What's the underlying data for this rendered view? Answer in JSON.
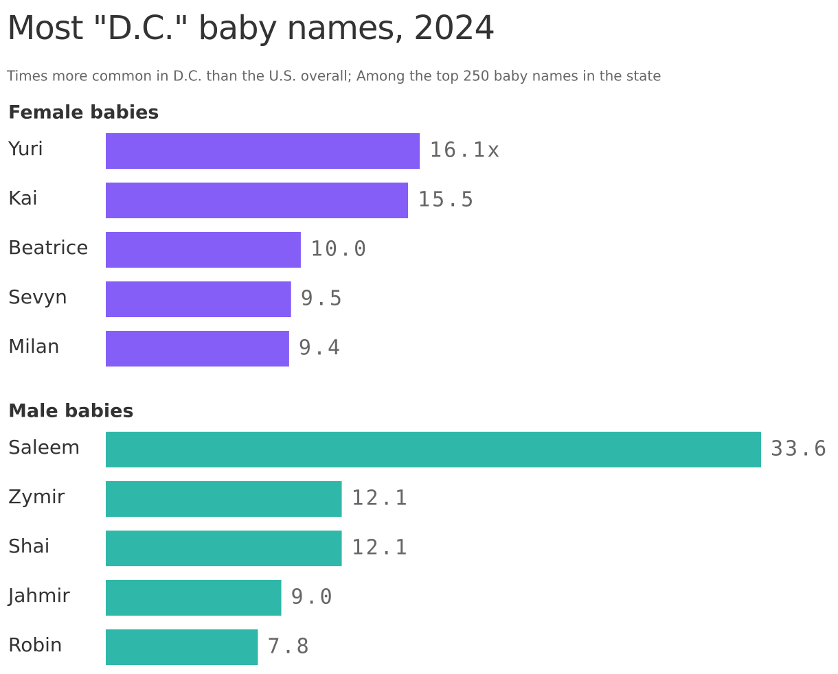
{
  "title": "Most \"D.C.\" baby names, 2024",
  "subtitle": "Times more common in D.C. than the U.S. overall; Among the top 250 baby names in the state",
  "chart_data": [
    {
      "type": "bar",
      "orientation": "horizontal",
      "title": "Female babies",
      "categories": [
        "Yuri",
        "Kai",
        "Beatrice",
        "Sevyn",
        "Milan"
      ],
      "values": [
        16.1,
        15.5,
        10.0,
        9.5,
        9.4
      ],
      "value_labels": [
        "16.1x",
        "15.5",
        "10.0",
        "9.5",
        "9.4"
      ],
      "color": "#845ef7"
    },
    {
      "type": "bar",
      "orientation": "horizontal",
      "title": "Male babies",
      "categories": [
        "Saleem",
        "Zymir",
        "Shai",
        "Jahmir",
        "Robin"
      ],
      "values": [
        33.6,
        12.1,
        12.1,
        9.0,
        7.8
      ],
      "value_labels": [
        "33.6",
        "12.1",
        "12.1",
        "9.0",
        "7.8"
      ],
      "color": "#2fb8a9"
    }
  ]
}
